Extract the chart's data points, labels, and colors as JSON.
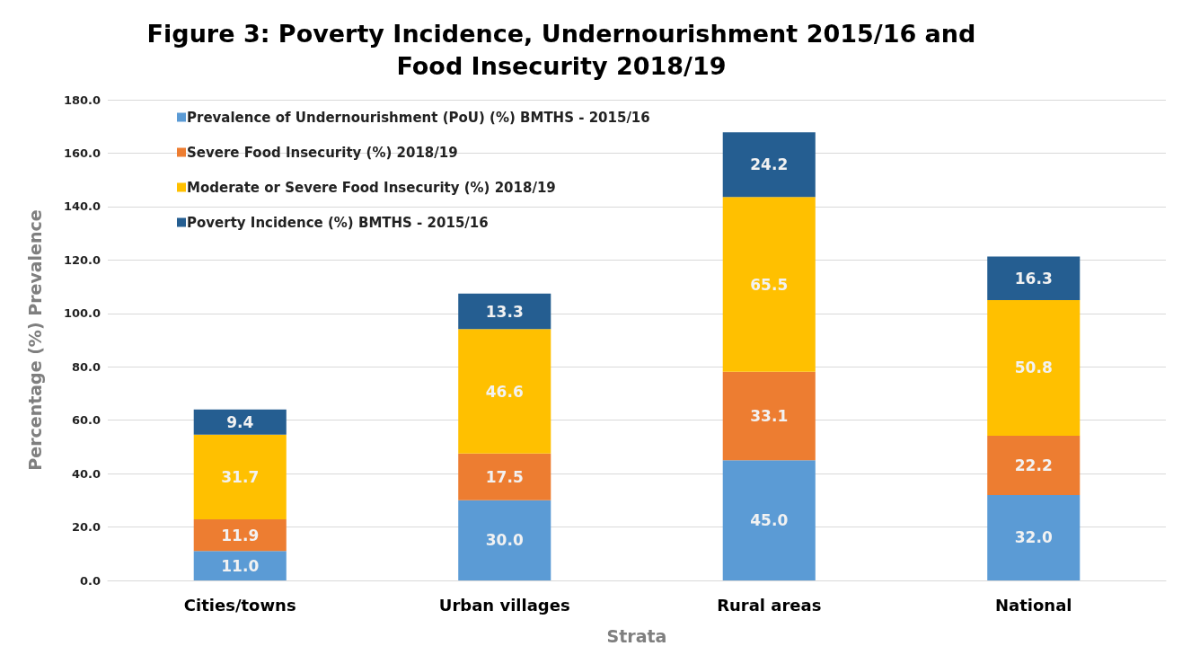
{
  "chart_data": {
    "type": "bar",
    "title": "Figure 3: Poverty Incidence, Undernourishment 2015/16 and\nFood Insecurity 2018/19",
    "xlabel": "Strata",
    "ylabel": "Percentage (%) Prevalence",
    "categories": [
      "Cities/towns",
      "Urban villages",
      "Rural areas",
      "National"
    ],
    "stacked": true,
    "series": [
      {
        "name": "Prevalence of Undernourishment (PoU) (%) BMTHS - 2015/16",
        "color": "#5b9bd5",
        "values": [
          11.0,
          30.0,
          45.0,
          32.0
        ],
        "value_labels": [
          "11.0",
          "30.0",
          "45.0",
          "32.0"
        ]
      },
      {
        "name": "Severe Food Insecurity (%) 2018/19",
        "color": "#ed7d31",
        "values": [
          11.9,
          17.5,
          33.1,
          22.2
        ],
        "value_labels": [
          "11.9",
          "17.5",
          "33.1",
          "22.2"
        ]
      },
      {
        "name": "Moderate or Severe Food Insecurity (%) 2018/19",
        "color": "#ffc000",
        "values": [
          31.7,
          46.6,
          65.5,
          50.8
        ],
        "value_labels": [
          "31.7",
          "46.6",
          "65.5",
          "50.8"
        ]
      },
      {
        "name": "Poverty Incidence (%) BMTHS - 2015/16",
        "color": "#255e91",
        "values": [
          9.4,
          13.3,
          24.2,
          16.3
        ],
        "value_labels": [
          "9.4",
          "13.3",
          "24.2",
          "16.3"
        ]
      }
    ],
    "ylim": [
      0,
      180
    ],
    "yticks": [
      {
        "value": 0,
        "label": "0.0"
      },
      {
        "value": 20,
        "label": "20.0"
      },
      {
        "value": 40,
        "label": "40.0"
      },
      {
        "value": 60,
        "label": "60.0"
      },
      {
        "value": 80,
        "label": "80.0"
      },
      {
        "value": 100,
        "label": "100.0"
      },
      {
        "value": 120,
        "label": "120.0"
      },
      {
        "value": 140,
        "label": "140.0"
      },
      {
        "value": 160,
        "label": "160.0"
      },
      {
        "value": 180,
        "label": "180.0"
      }
    ],
    "grid": "y",
    "legend": "top left"
  }
}
